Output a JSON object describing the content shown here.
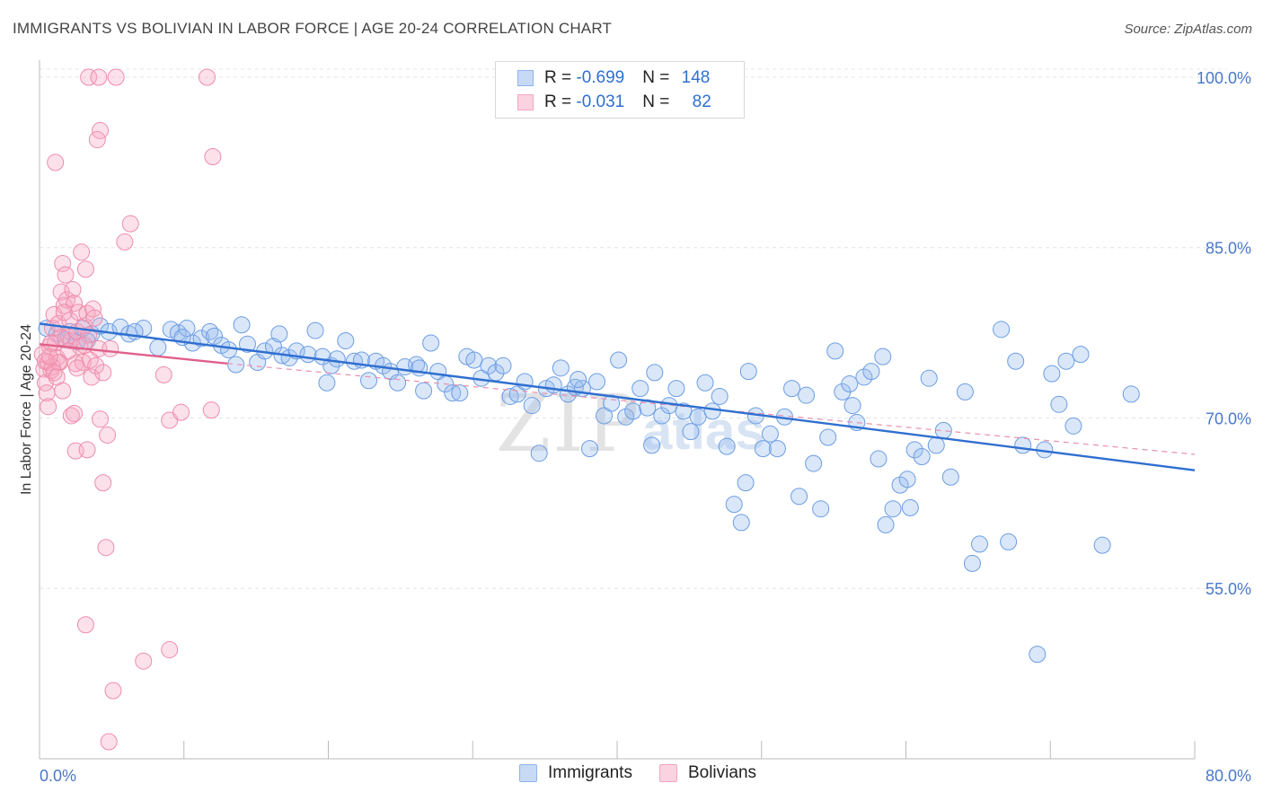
{
  "title": "IMMIGRANTS VS BOLIVIAN IN LABOR FORCE | AGE 20-24 CORRELATION CHART",
  "source": "Source: ZipAtlas.com",
  "watermark": {
    "part1": "ZIP",
    "part2": "atlas"
  },
  "legend": {
    "rows": [
      {
        "r_label": "R = ",
        "r_value": "-0.699",
        "n_label": "N = ",
        "n_value": "148",
        "color": "#8fb4ea"
      },
      {
        "r_label": "R = ",
        "r_value": "-0.031",
        "n_label": "N = ",
        "n_value": "82",
        "color": "#f4a6bf"
      }
    ]
  },
  "bottom_legend": {
    "immigrants": "Immigrants",
    "bolivians": "Bolivians"
  },
  "chart_data": {
    "type": "scatter",
    "title": "IMMIGRANTS VS BOLIVIAN IN LABOR FORCE | AGE 20-24 CORRELATION CHART",
    "xlabel": "",
    "ylabel": "In Labor Force | Age 20-24",
    "xlim": [
      0,
      80
    ],
    "ylim": [
      40,
      101.5
    ],
    "x_tick_labels": [
      "0.0%",
      "80.0%"
    ],
    "y_ticks": [
      55,
      70,
      85,
      100
    ],
    "y_tick_labels": [
      "55.0%",
      "70.0%",
      "85.0%",
      "100.0%"
    ],
    "grid": true,
    "legend_position": "top-center",
    "colors": {
      "immigrants": "#6b9de3",
      "bolivians": "#ef8cab",
      "immigrants_line": "#2f6fd0",
      "bolivians_line": "#e0608a"
    },
    "series": [
      {
        "name": "Immigrants",
        "trendline": {
          "x": [
            0,
            80
          ],
          "y": [
            78.3,
            65.4
          ]
        },
        "points": [
          [
            0.5,
            77.9
          ],
          [
            1.2,
            77.4
          ],
          [
            1.8,
            76.9
          ],
          [
            2.1,
            77.6
          ],
          [
            2.6,
            76.7
          ],
          [
            3.0,
            77.9
          ],
          [
            3.6,
            77.4
          ],
          [
            4.2,
            78.1
          ],
          [
            4.8,
            77.6
          ],
          [
            5.6,
            78.0
          ],
          [
            6.2,
            77.4
          ],
          [
            7.2,
            77.9
          ],
          [
            8.2,
            76.2
          ],
          [
            9.1,
            77.8
          ],
          [
            9.6,
            77.5
          ],
          [
            10.2,
            77.9
          ],
          [
            10.6,
            76.6
          ],
          [
            11.2,
            77.0
          ],
          [
            11.8,
            77.6
          ],
          [
            12.1,
            77.2
          ],
          [
            12.6,
            76.4
          ],
          [
            13.1,
            76.0
          ],
          [
            13.6,
            74.7
          ],
          [
            14.0,
            78.2
          ],
          [
            14.4,
            76.5
          ],
          [
            15.1,
            74.9
          ],
          [
            15.6,
            75.9
          ],
          [
            16.2,
            76.3
          ],
          [
            16.6,
            77.4
          ],
          [
            16.8,
            75.5
          ],
          [
            17.3,
            75.3
          ],
          [
            17.8,
            75.9
          ],
          [
            18.6,
            75.6
          ],
          [
            19.1,
            77.7
          ],
          [
            19.6,
            75.4
          ],
          [
            20.2,
            74.6
          ],
          [
            20.6,
            75.2
          ],
          [
            21.2,
            76.8
          ],
          [
            21.8,
            75.0
          ],
          [
            22.3,
            75.1
          ],
          [
            22.8,
            73.3
          ],
          [
            23.3,
            75.0
          ],
          [
            23.8,
            74.6
          ],
          [
            24.3,
            74.1
          ],
          [
            24.8,
            73.1
          ],
          [
            25.3,
            74.5
          ],
          [
            26.1,
            74.7
          ],
          [
            26.6,
            72.4
          ],
          [
            27.1,
            76.6
          ],
          [
            27.6,
            74.1
          ],
          [
            28.1,
            73.0
          ],
          [
            28.6,
            72.2
          ],
          [
            29.1,
            72.2
          ],
          [
            29.6,
            75.4
          ],
          [
            30.1,
            75.1
          ],
          [
            30.6,
            73.5
          ],
          [
            31.1,
            74.6
          ],
          [
            31.6,
            74.0
          ],
          [
            32.1,
            74.6
          ],
          [
            32.6,
            71.9
          ],
          [
            33.1,
            72.1
          ],
          [
            33.6,
            73.2
          ],
          [
            34.1,
            71.1
          ],
          [
            34.6,
            66.9
          ],
          [
            35.1,
            72.6
          ],
          [
            35.6,
            72.9
          ],
          [
            36.1,
            74.4
          ],
          [
            36.6,
            72.1
          ],
          [
            37.1,
            72.7
          ],
          [
            37.6,
            72.6
          ],
          [
            38.1,
            67.3
          ],
          [
            38.6,
            73.2
          ],
          [
            39.1,
            70.2
          ],
          [
            39.6,
            71.3
          ],
          [
            40.1,
            75.1
          ],
          [
            40.6,
            70.1
          ],
          [
            41.1,
            70.6
          ],
          [
            41.6,
            72.6
          ],
          [
            42.1,
            70.9
          ],
          [
            42.6,
            74.0
          ],
          [
            43.1,
            70.2
          ],
          [
            43.6,
            71.1
          ],
          [
            44.1,
            72.6
          ],
          [
            44.6,
            70.6
          ],
          [
            45.1,
            68.8
          ],
          [
            45.6,
            70.1
          ],
          [
            46.1,
            73.1
          ],
          [
            46.6,
            70.6
          ],
          [
            47.1,
            71.9
          ],
          [
            47.6,
            67.5
          ],
          [
            48.1,
            62.4
          ],
          [
            48.6,
            60.8
          ],
          [
            49.1,
            74.1
          ],
          [
            49.6,
            70.2
          ],
          [
            50.1,
            67.3
          ],
          [
            50.6,
            68.6
          ],
          [
            51.1,
            67.3
          ],
          [
            51.6,
            70.1
          ],
          [
            52.1,
            72.6
          ],
          [
            52.6,
            63.1
          ],
          [
            53.1,
            72.0
          ],
          [
            53.6,
            66.0
          ],
          [
            54.1,
            62.0
          ],
          [
            54.6,
            68.3
          ],
          [
            55.1,
            75.9
          ],
          [
            55.6,
            72.3
          ],
          [
            56.1,
            73.0
          ],
          [
            56.6,
            69.6
          ],
          [
            57.1,
            73.6
          ],
          [
            57.6,
            74.1
          ],
          [
            58.1,
            66.4
          ],
          [
            58.6,
            60.6
          ],
          [
            59.1,
            62.0
          ],
          [
            59.6,
            64.1
          ],
          [
            60.1,
            64.6
          ],
          [
            60.6,
            67.2
          ],
          [
            61.1,
            66.6
          ],
          [
            61.6,
            73.5
          ],
          [
            62.1,
            67.6
          ],
          [
            62.6,
            68.9
          ],
          [
            63.1,
            64.8
          ],
          [
            64.1,
            72.3
          ],
          [
            64.6,
            57.2
          ],
          [
            65.1,
            58.9
          ],
          [
            66.6,
            77.8
          ],
          [
            67.1,
            59.1
          ],
          [
            67.6,
            75.0
          ],
          [
            68.1,
            67.6
          ],
          [
            69.1,
            49.2
          ],
          [
            69.6,
            67.2
          ],
          [
            70.1,
            73.9
          ],
          [
            70.6,
            71.2
          ],
          [
            71.1,
            75.0
          ],
          [
            71.6,
            69.3
          ],
          [
            72.1,
            75.6
          ],
          [
            73.6,
            58.8
          ],
          [
            75.6,
            72.1
          ],
          [
            3.3,
            76.8
          ],
          [
            6.6,
            77.6
          ],
          [
            9.9,
            77.1
          ],
          [
            26.3,
            74.4
          ],
          [
            48.9,
            64.3
          ],
          [
            56.3,
            71.1
          ],
          [
            60.3,
            62.1
          ],
          [
            19.9,
            73.1
          ],
          [
            58.4,
            75.4
          ],
          [
            42.4,
            67.6
          ],
          [
            37.3,
            73.4
          ]
        ]
      },
      {
        "name": "Bolivians",
        "trendline": {
          "x": [
            0,
            13
          ],
          "y": [
            76.5,
            74.8
          ]
        },
        "dashed_extension": {
          "x": [
            13,
            80
          ],
          "y": [
            74.8,
            66.8
          ]
        },
        "points": [
          [
            0.2,
            75.6
          ],
          [
            0.3,
            74.3
          ],
          [
            0.4,
            73.1
          ],
          [
            0.5,
            72.2
          ],
          [
            0.6,
            74.9
          ],
          [
            0.7,
            76.3
          ],
          [
            0.8,
            74.2
          ],
          [
            0.9,
            77.9
          ],
          [
            1.0,
            79.1
          ],
          [
            1.1,
            76.6
          ],
          [
            1.2,
            75.3
          ],
          [
            1.3,
            78.3
          ],
          [
            1.4,
            74.9
          ],
          [
            1.5,
            81.1
          ],
          [
            1.6,
            83.6
          ],
          [
            1.7,
            79.9
          ],
          [
            1.8,
            82.6
          ],
          [
            1.9,
            80.4
          ],
          [
            2.0,
            77.1
          ],
          [
            2.1,
            78.6
          ],
          [
            2.2,
            76.8
          ],
          [
            2.3,
            81.3
          ],
          [
            2.4,
            80.1
          ],
          [
            2.5,
            74.8
          ],
          [
            2.6,
            77.6
          ],
          [
            2.7,
            79.3
          ],
          [
            2.8,
            76.3
          ],
          [
            2.9,
            84.6
          ],
          [
            3.0,
            74.9
          ],
          [
            3.1,
            78.1
          ],
          [
            3.2,
            83.1
          ],
          [
            3.3,
            79.2
          ],
          [
            3.4,
            77.3
          ],
          [
            3.5,
            75.1
          ],
          [
            3.6,
            73.6
          ],
          [
            3.7,
            79.6
          ],
          [
            3.8,
            78.8
          ],
          [
            3.9,
            74.6
          ],
          [
            4.1,
            76.1
          ],
          [
            4.2,
            69.9
          ],
          [
            4.4,
            64.3
          ],
          [
            4.6,
            58.6
          ],
          [
            4.7,
            68.5
          ],
          [
            1.1,
            92.5
          ],
          [
            4.2,
            95.3
          ],
          [
            4.0,
            94.5
          ],
          [
            3.4,
            100.0
          ],
          [
            4.1,
            100.0
          ],
          [
            5.3,
            100.0
          ],
          [
            11.6,
            100.0
          ],
          [
            12.0,
            93.0
          ],
          [
            6.3,
            87.1
          ],
          [
            5.9,
            85.5
          ],
          [
            3.2,
            51.8
          ],
          [
            7.2,
            48.6
          ],
          [
            9.0,
            49.6
          ],
          [
            5.1,
            46.0
          ],
          [
            4.8,
            41.5
          ],
          [
            2.2,
            70.2
          ],
          [
            2.4,
            70.4
          ],
          [
            2.5,
            67.1
          ],
          [
            3.3,
            67.2
          ],
          [
            9.0,
            69.8
          ],
          [
            8.6,
            73.8
          ],
          [
            9.8,
            70.5
          ],
          [
            11.9,
            70.7
          ],
          [
            0.6,
            71.0
          ],
          [
            0.9,
            74.5
          ],
          [
            1.3,
            74.9
          ],
          [
            1.5,
            77.1
          ],
          [
            1.7,
            79.3
          ],
          [
            2.0,
            75.9
          ],
          [
            0.4,
            75.0
          ],
          [
            0.7,
            75.4
          ],
          [
            0.8,
            76.6
          ],
          [
            1.0,
            74.0
          ],
          [
            1.2,
            73.6
          ],
          [
            1.6,
            72.4
          ],
          [
            2.6,
            74.4
          ],
          [
            3.1,
            76.4
          ],
          [
            4.4,
            74.0
          ],
          [
            4.9,
            76.1
          ]
        ]
      }
    ]
  }
}
